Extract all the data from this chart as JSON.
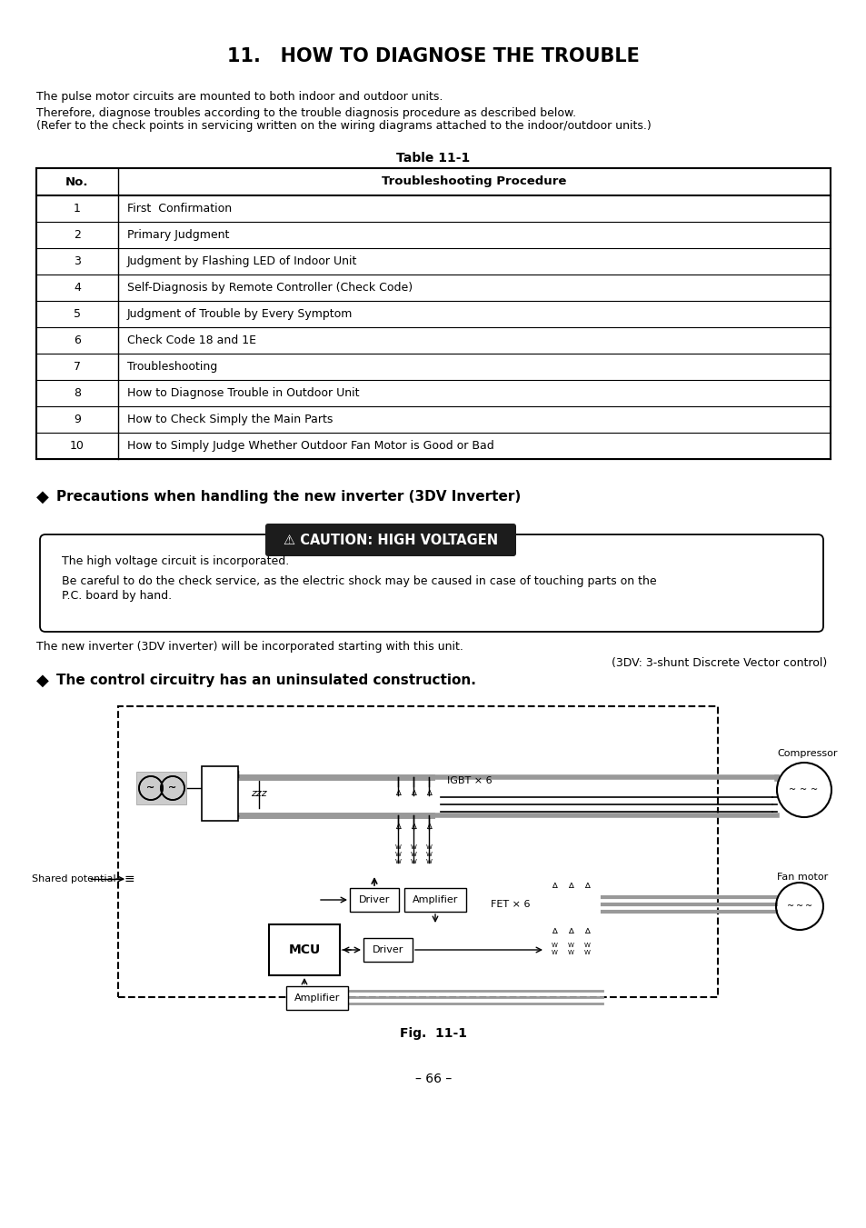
{
  "page_bg": "#ffffff",
  "title": "11.   HOW TO DIAGNOSE THE TROUBLE",
  "intro_text1": "The pulse motor circuits are mounted to both indoor and outdoor units.",
  "intro_text2": "Therefore, diagnose troubles according to the trouble diagnosis procedure as described below.",
  "intro_text3": "(Refer to the check points in servicing written on the wiring diagrams attached to the indoor/outdoor units.)",
  "table_title": "Table 11-1",
  "table_headers": [
    "No.",
    "Troubleshooting Procedure"
  ],
  "table_rows": [
    [
      "1",
      "First  Confirmation"
    ],
    [
      "2",
      "Primary Judgment"
    ],
    [
      "3",
      "Judgment by Flashing LED of Indoor Unit"
    ],
    [
      "4",
      "Self-Diagnosis by Remote Controller (Check Code)"
    ],
    [
      "5",
      "Judgment of Trouble by Every Symptom"
    ],
    [
      "6",
      "Check Code 18 and 1E"
    ],
    [
      "7",
      "Troubleshooting"
    ],
    [
      "8",
      "How to Diagnose Trouble in Outdoor Unit"
    ],
    [
      "9",
      "How to Check Simply the Main Parts"
    ],
    [
      "10",
      "How to Simply Judge Whether Outdoor Fan Motor is Good or Bad"
    ]
  ],
  "section1_bullet": "◆",
  "section1_text": "Precautions when handling the new inverter (3DV Inverter)",
  "caution_text": "⚠ CAUTION: HIGH VOLTAGEN",
  "caution_box_text1": "The high voltage circuit is incorporated.",
  "caution_box_text2": "Be careful to do the check service, as the electric shock may be caused in case of touching parts on the",
  "caution_box_text3": "P.C. board by hand.",
  "inverter_text1": "The new inverter (3DV inverter) will be incorporated starting with this unit.",
  "inverter_text2": "(3DV: 3-shunt Discrete Vector control)",
  "section2_bullet": "◆",
  "section2_text": "The control circuitry has an uninsulated construction.",
  "fig_caption": "Fig.  11-1",
  "page_number": "– 66 –",
  "text_color": "#000000",
  "caution_bg": "#1c1c1c",
  "caution_fg": "#ffffff",
  "gray_bus": "#888888",
  "table_border": "#000000"
}
